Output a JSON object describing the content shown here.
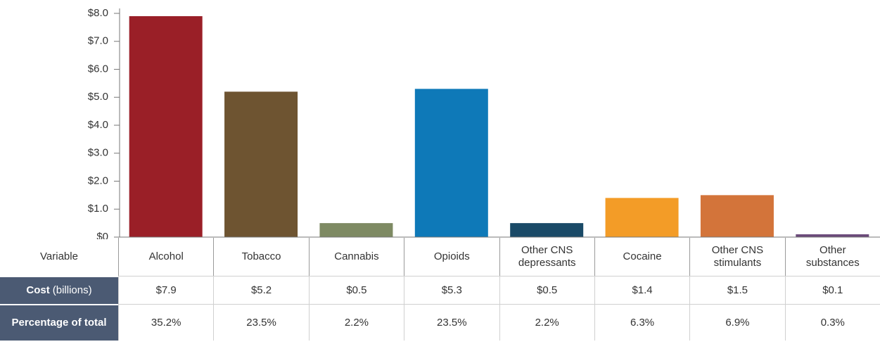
{
  "chart_data": {
    "type": "bar",
    "categories": [
      "Alcohol",
      "Tobacco",
      "Cannabis",
      "Opioids",
      "Other CNS depressants",
      "Cocaine",
      "Other CNS stimulants",
      "Other substances"
    ],
    "values": [
      7.9,
      5.2,
      0.5,
      5.3,
      0.5,
      1.4,
      1.5,
      0.1
    ],
    "value_labels": [
      "$7.9",
      "$5.2",
      "$0.5",
      "$5.3",
      "$0.5",
      "$1.4",
      "$1.5",
      "$0.1"
    ],
    "colors": [
      "#9a1f27",
      "#6e5431",
      "#7e8a63",
      "#0e79b8",
      "#1a4a67",
      "#f39c27",
      "#d3743a",
      "#6b4a7a"
    ],
    "percentages": [
      35.2,
      23.5,
      2.2,
      23.5,
      2.2,
      6.3,
      6.9,
      0.3
    ],
    "percentage_labels": [
      "35.2%",
      "23.5%",
      "2.2%",
      "23.5%",
      "2.2%",
      "6.3%",
      "6.9%",
      "0.3%"
    ],
    "row_labels": {
      "variable": "Variable",
      "cost": "Cost",
      "cost_unit": "(billions)",
      "percentage": "Percentage of total"
    },
    "ylim": [
      0,
      8
    ],
    "yticks": [
      {
        "value": 0,
        "label": "$0"
      },
      {
        "value": 1,
        "label": "$1.0"
      },
      {
        "value": 2,
        "label": "$2.0"
      },
      {
        "value": 3,
        "label": "$3.0"
      },
      {
        "value": 4,
        "label": "$4.0"
      },
      {
        "value": 5,
        "label": "$5.0"
      },
      {
        "value": 6,
        "label": "$6.0"
      },
      {
        "value": 7,
        "label": "$7.0"
      },
      {
        "value": 8,
        "label": "$8.0"
      }
    ]
  }
}
